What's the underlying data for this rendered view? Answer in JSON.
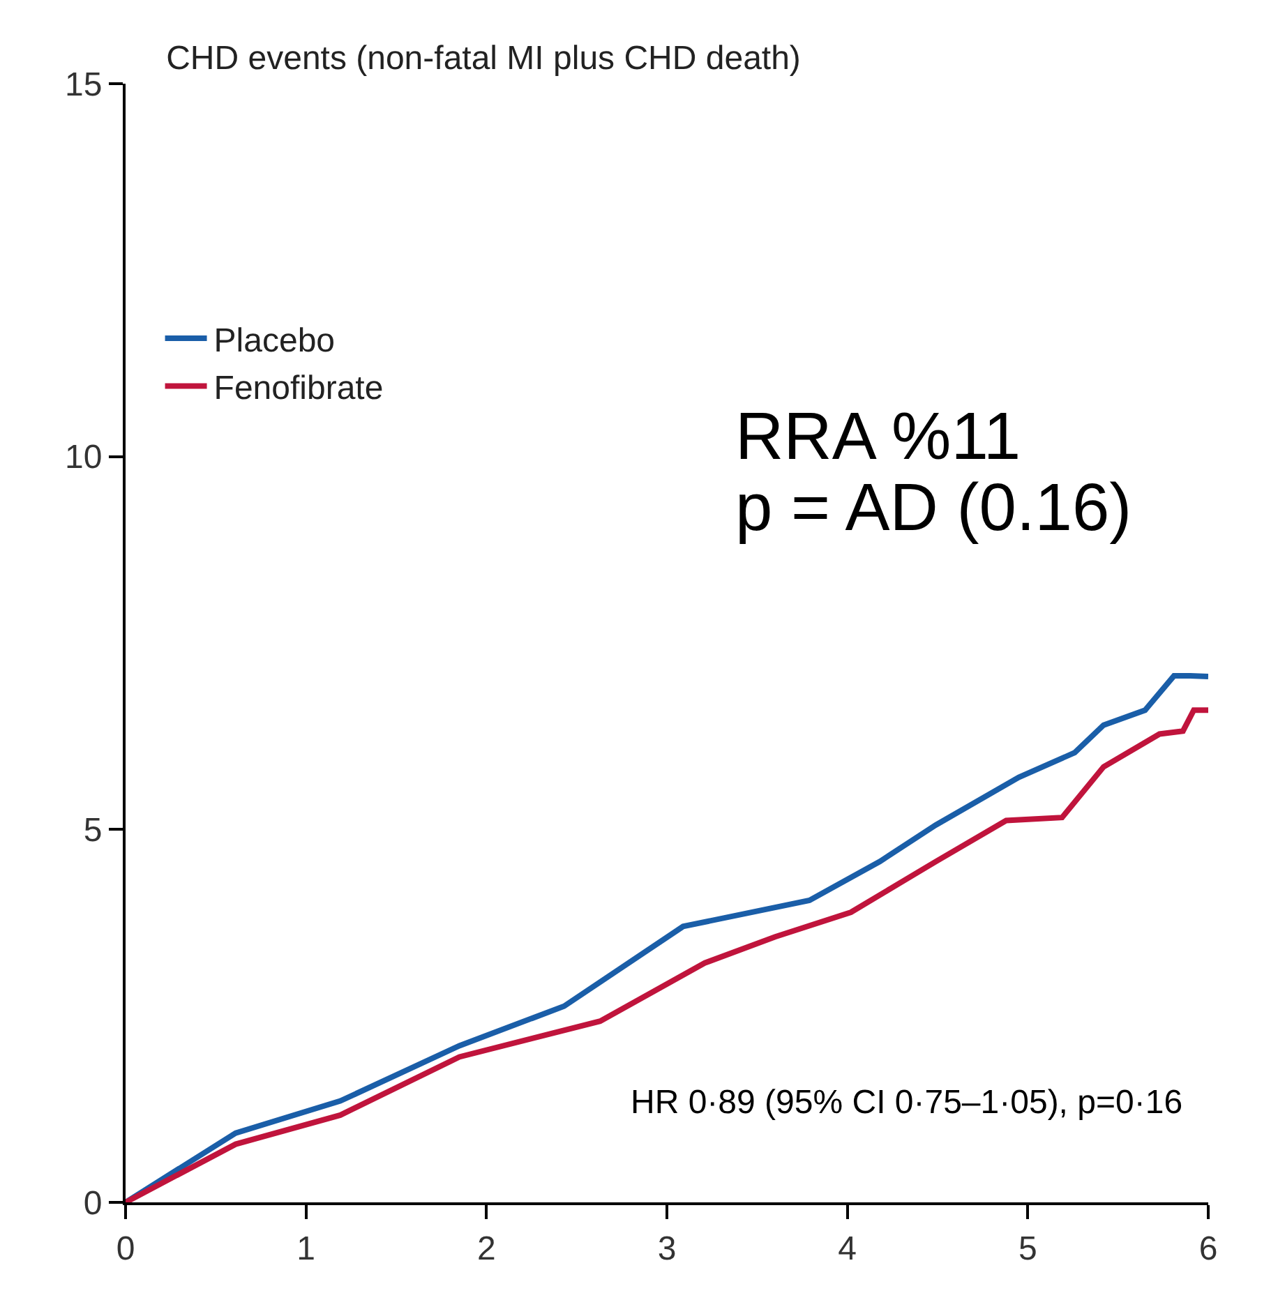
{
  "chart_data": {
    "type": "line",
    "title": "CHD events (non-fatal MI plus CHD death)",
    "xlim": [
      0,
      6
    ],
    "xticks": [
      0,
      1,
      2,
      3,
      4,
      5,
      6
    ],
    "ylim": [
      0,
      15
    ],
    "yticks": [
      0,
      5,
      10,
      15
    ],
    "legend": "top left",
    "marker": "none",
    "line_style": "solid",
    "series": [
      {
        "name": "Placebo",
        "color": "#1a5ea8",
        "x": [
          0,
          0.61,
          1.19,
          1.85,
          2.43,
          3.09,
          3.79,
          4.18,
          4.49,
          4.95,
          5.26,
          5.42,
          5.65,
          5.81,
          5.9,
          6
        ],
        "values": [
          0,
          0.93,
          1.36,
          2.1,
          2.63,
          3.7,
          4.05,
          4.57,
          5.06,
          5.7,
          6.03,
          6.4,
          6.6,
          7.06,
          7.06,
          7.05
        ]
      },
      {
        "name": "Fenofibrate",
        "color": "#c0143c",
        "x": [
          0,
          0.61,
          1.19,
          1.85,
          2.63,
          3.21,
          3.6,
          4.02,
          4.49,
          4.88,
          5.19,
          5.42,
          5.73,
          5.86,
          5.92,
          6
        ],
        "values": [
          0,
          0.78,
          1.17,
          1.95,
          2.43,
          3.21,
          3.56,
          3.89,
          4.57,
          5.12,
          5.16,
          5.84,
          6.28,
          6.32,
          6.6,
          6.6
        ]
      }
    ],
    "annotations": [
      "RRA %11",
      "p = AD (0.16)",
      "HR 0·89 (95% CI 0·75–1·05), p=0·16"
    ]
  }
}
